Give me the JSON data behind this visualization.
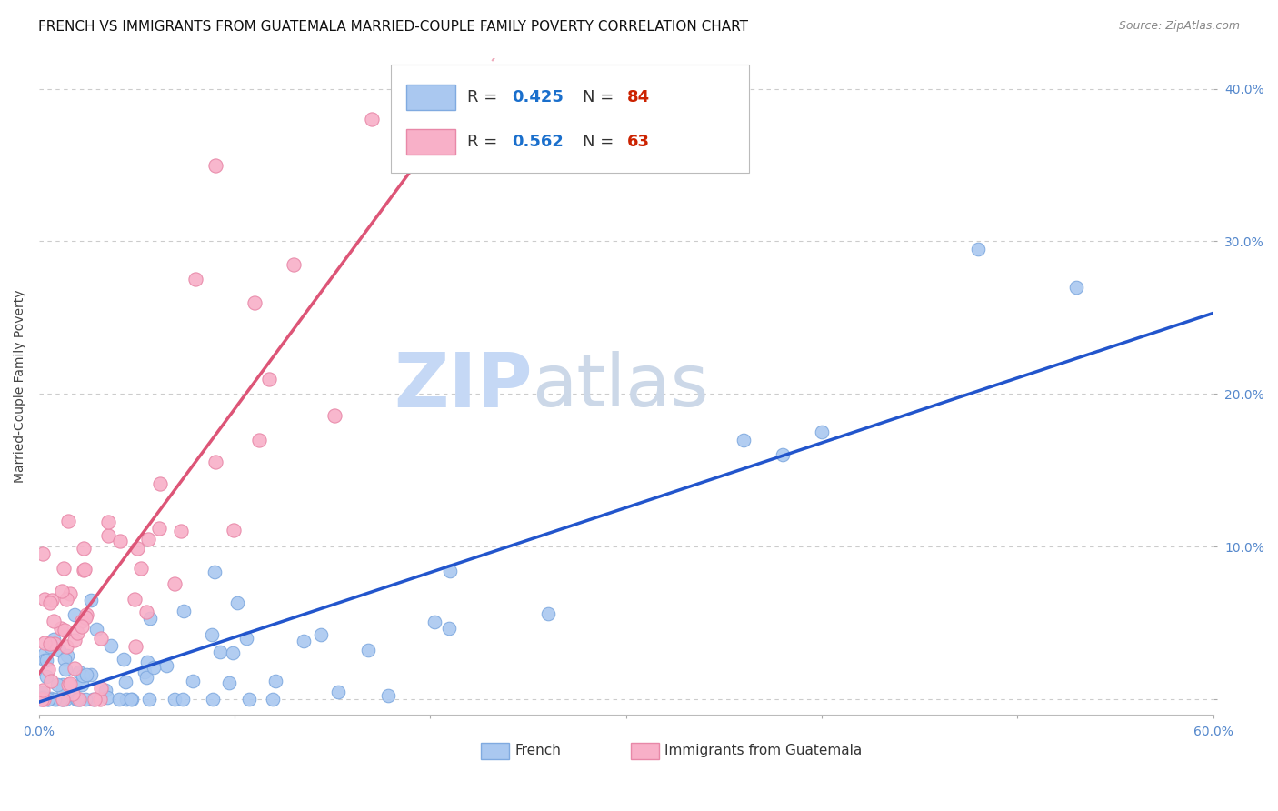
{
  "title": "FRENCH VS IMMIGRANTS FROM GUATEMALA MARRIED-COUPLE FAMILY POVERTY CORRELATION CHART",
  "source": "Source: ZipAtlas.com",
  "ylabel": "Married-Couple Family Poverty",
  "xlim": [
    0.0,
    0.6
  ],
  "ylim": [
    -0.01,
    0.42
  ],
  "xticks": [
    0.0,
    0.1,
    0.2,
    0.3,
    0.4,
    0.5,
    0.6
  ],
  "xticklabels": [
    "0.0%",
    "",
    "",
    "",
    "",
    "",
    "60.0%"
  ],
  "yticks": [
    0.0,
    0.1,
    0.2,
    0.3,
    0.4
  ],
  "yticklabels": [
    "",
    "10.0%",
    "20.0%",
    "30.0%",
    "40.0%"
  ],
  "french_color": "#aac8f0",
  "french_edge_color": "#80aae0",
  "guatemala_color": "#f8b0c8",
  "guatemala_edge_color": "#e888a8",
  "french_R": 0.425,
  "french_N": 84,
  "guatemala_R": 0.562,
  "guatemala_N": 63,
  "legend_R_color": "#1a6fcc",
  "legend_N_color": "#cc2200",
  "watermark": "ZIPAtlas",
  "watermark_blue": "#c0d4f0",
  "watermark_gray": "#b0c0d8",
  "title_fontsize": 11,
  "axis_label_fontsize": 10,
  "tick_fontsize": 10,
  "tick_color": "#5588cc",
  "french_line_color": "#2255cc",
  "guatemala_line_color": "#dd5577",
  "background_color": "#ffffff",
  "grid_color": "#cccccc",
  "french_seed": 42,
  "guatemala_seed": 77
}
